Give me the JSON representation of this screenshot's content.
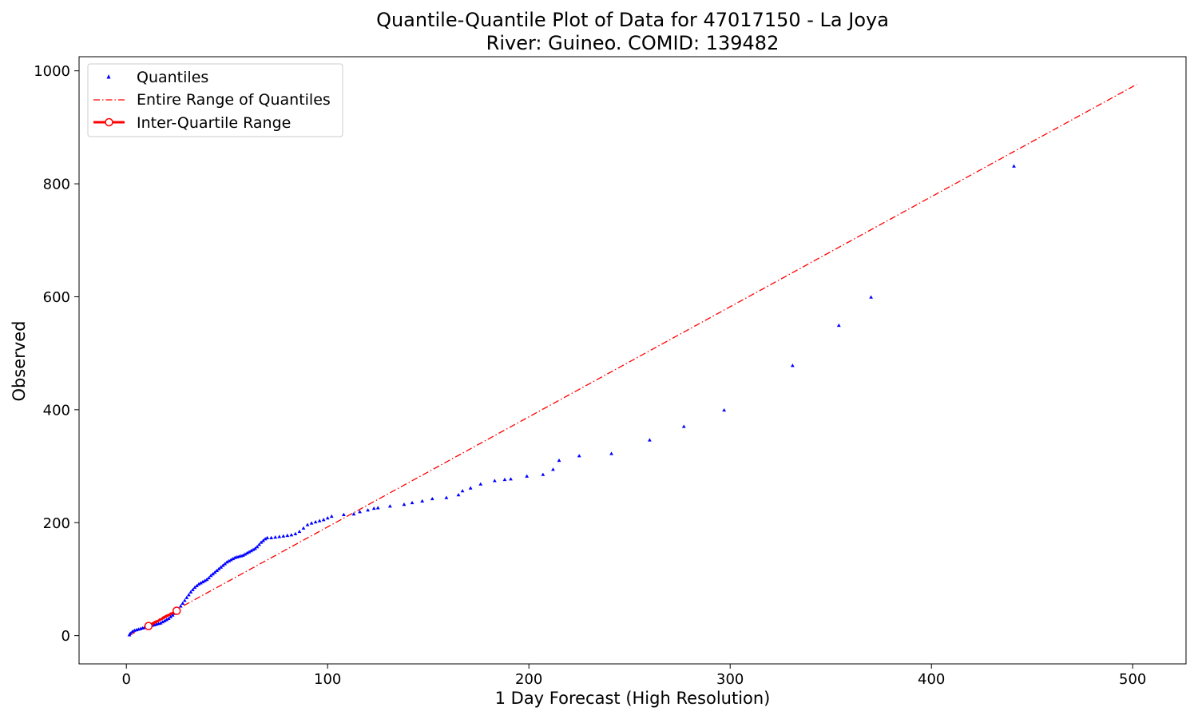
{
  "chart_data": {
    "type": "scatter",
    "title": "Quantile-Quantile Plot of Data for 47017150 - La Joya",
    "subtitle": "River: Guineo. COMID: 139482",
    "xlabel": "1 Day Forecast (High Resolution)",
    "ylabel": "Observed",
    "xlim": [
      -23.5,
      526.5
    ],
    "ylim": [
      -50,
      1025
    ],
    "xticks": [
      0,
      100,
      200,
      300,
      400,
      500
    ],
    "yticks": [
      0,
      200,
      400,
      600,
      800,
      1000
    ],
    "grid": false,
    "legend": {
      "placement": "top-left",
      "entries": [
        {
          "label": "Quantiles",
          "color": "#0000ff",
          "marker": "triangle"
        },
        {
          "label": "Entire Range of Quantiles",
          "color": "#ff0000",
          "style": "dash-dot"
        },
        {
          "label": "Inter-Quartile Range",
          "color": "#ff0000",
          "style": "solid-circle-markers"
        }
      ]
    },
    "series": [
      {
        "name": "Quantiles",
        "color": "#0000ff",
        "points": [
          [
            1.5,
            1
          ],
          [
            2,
            4
          ],
          [
            3,
            7
          ],
          [
            4,
            9
          ],
          [
            5,
            10
          ],
          [
            6,
            11
          ],
          [
            7,
            12
          ],
          [
            8,
            13
          ],
          [
            9,
            14
          ],
          [
            10,
            15
          ],
          [
            11,
            16
          ],
          [
            12,
            17
          ],
          [
            13,
            18
          ],
          [
            14,
            19
          ],
          [
            15,
            20
          ],
          [
            16,
            21
          ],
          [
            17,
            22
          ],
          [
            18,
            24
          ],
          [
            19,
            26
          ],
          [
            20,
            28
          ],
          [
            21,
            30
          ],
          [
            22,
            33
          ],
          [
            23,
            36
          ],
          [
            24,
            39
          ],
          [
            25,
            43
          ],
          [
            26,
            47
          ],
          [
            27,
            52
          ],
          [
            28,
            57
          ],
          [
            29,
            62
          ],
          [
            30,
            67
          ],
          [
            31,
            72
          ],
          [
            32,
            77
          ],
          [
            33,
            81
          ],
          [
            34,
            85
          ],
          [
            35,
            88
          ],
          [
            36,
            91
          ],
          [
            37,
            93
          ],
          [
            38,
            95
          ],
          [
            39,
            97
          ],
          [
            40,
            99
          ],
          [
            41,
            102
          ],
          [
            42,
            106
          ],
          [
            43,
            109
          ],
          [
            44,
            112
          ],
          [
            45,
            115
          ],
          [
            46,
            118
          ],
          [
            47,
            121
          ],
          [
            48,
            124
          ],
          [
            49,
            127
          ],
          [
            50,
            130
          ],
          [
            51,
            132
          ],
          [
            52,
            134
          ],
          [
            53,
            136
          ],
          [
            54,
            138
          ],
          [
            55,
            139
          ],
          [
            56,
            140
          ],
          [
            57,
            141
          ],
          [
            58,
            142
          ],
          [
            59,
            144
          ],
          [
            60,
            146
          ],
          [
            61,
            148
          ],
          [
            62,
            150
          ],
          [
            63,
            152
          ],
          [
            64,
            154
          ],
          [
            65,
            157
          ],
          [
            66,
            161
          ],
          [
            67,
            165
          ],
          [
            68,
            168
          ],
          [
            69,
            171
          ],
          [
            70,
            173
          ],
          [
            72,
            173
          ],
          [
            74,
            174
          ],
          [
            76,
            175
          ],
          [
            78,
            176
          ],
          [
            80,
            177
          ],
          [
            82,
            178
          ],
          [
            84,
            180
          ],
          [
            86,
            184
          ],
          [
            88,
            190
          ],
          [
            90,
            196
          ],
          [
            92,
            199
          ],
          [
            94,
            201
          ],
          [
            96,
            203
          ],
          [
            98,
            205
          ],
          [
            100,
            208
          ],
          [
            102,
            211
          ],
          [
            108,
            214
          ],
          [
            113,
            215
          ],
          [
            116,
            219
          ],
          [
            120,
            222
          ],
          [
            123,
            225
          ],
          [
            125,
            226
          ],
          [
            131,
            229
          ],
          [
            138,
            232
          ],
          [
            142,
            235
          ],
          [
            147,
            238
          ],
          [
            152,
            242
          ],
          [
            159,
            244
          ],
          [
            165,
            249
          ],
          [
            167,
            256
          ],
          [
            171,
            261
          ],
          [
            176,
            268
          ],
          [
            183,
            274
          ],
          [
            188,
            276
          ],
          [
            191,
            277
          ],
          [
            199,
            282
          ],
          [
            207,
            285
          ],
          [
            212,
            294
          ],
          [
            215,
            310
          ],
          [
            225,
            318
          ],
          [
            241,
            322
          ],
          [
            260,
            346
          ],
          [
            277,
            370
          ],
          [
            297,
            399
          ],
          [
            331,
            478
          ],
          [
            354,
            549
          ],
          [
            370,
            599
          ],
          [
            441,
            831
          ]
        ]
      },
      {
        "name": "Entire Range of Quantiles",
        "color": "#ff0000",
        "points": [
          [
            1.5,
            0.5
          ],
          [
            502,
            976
          ]
        ]
      },
      {
        "name": "Inter-Quartile Range",
        "color": "#ff0000",
        "points": [
          [
            11,
            17
          ],
          [
            25,
            44
          ]
        ]
      }
    ]
  }
}
